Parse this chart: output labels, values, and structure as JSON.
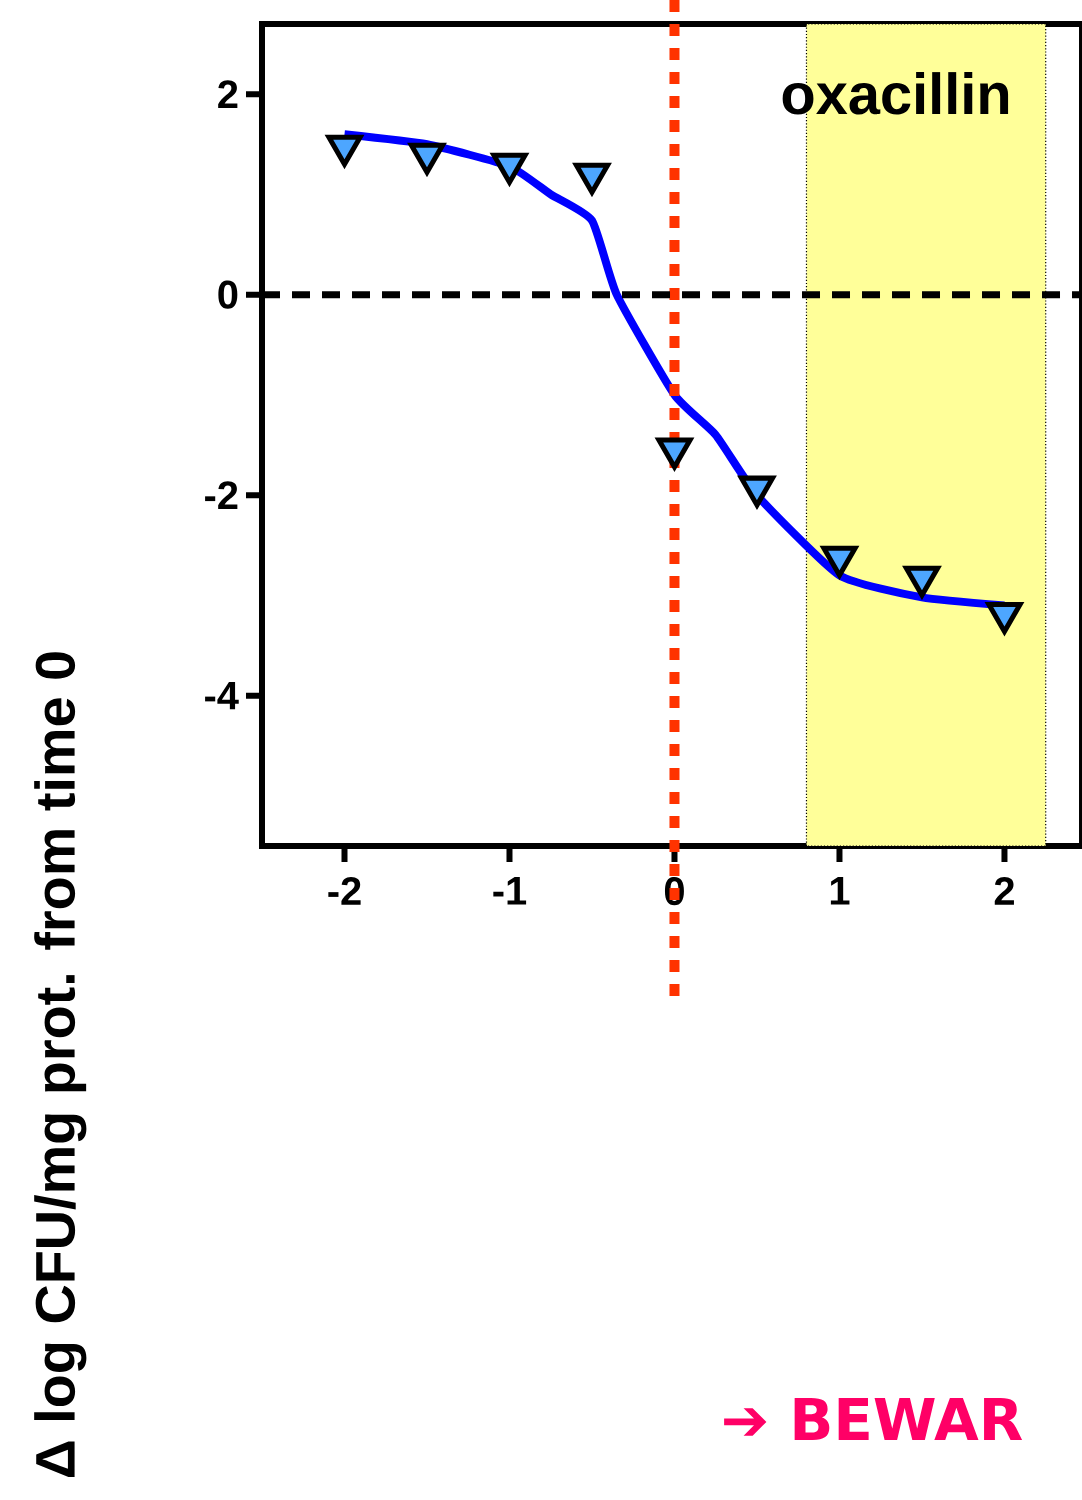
{
  "chart_data": {
    "type": "scatter",
    "ylabel": "Δ log CFU/mg prot. from time 0",
    "annotations": [
      "oxacillin",
      "➔ BEWAR"
    ],
    "xlim": [
      -2.5,
      2.47
    ],
    "ylim": [
      -5.5,
      2.7
    ],
    "xticks": [
      -2,
      -1,
      0,
      1,
      2
    ],
    "yticks": [
      -4,
      -2,
      0,
      2
    ],
    "ref_lines": [
      {
        "axis": "x",
        "value": 0,
        "color": "#ff3300",
        "line_style": "dotted"
      },
      {
        "axis": "y",
        "value": 0,
        "color": "#000000",
        "line_style": "dashed"
      }
    ],
    "bands": [
      {
        "axis": "x",
        "from": 0.8,
        "to": 2.25,
        "color": "#ffff99"
      }
    ],
    "series": [
      {
        "type": "line",
        "color": "#0000ff",
        "marker": "none",
        "line_style": "solid",
        "x": [
          -2,
          -1.5,
          -1,
          -0.75,
          -0.5,
          -0.35,
          0,
          0.25,
          0.5,
          1,
          1.5,
          2
        ],
        "values": [
          1.6,
          1.5,
          1.28,
          1.0,
          0.74,
          0,
          -1.0,
          -1.4,
          -2.0,
          -2.8,
          -3.02,
          -3.1
        ]
      },
      {
        "type": "scatter",
        "color": "#4da6ff",
        "marker": "triangle",
        "x": [
          -2,
          -1.5,
          -1,
          -0.5,
          0,
          0.5,
          1,
          1.5,
          2
        ],
        "values": [
          1.48,
          1.4,
          1.3,
          1.2,
          -1.54,
          -1.92,
          -2.62,
          -2.82,
          -3.18
        ]
      }
    ]
  }
}
